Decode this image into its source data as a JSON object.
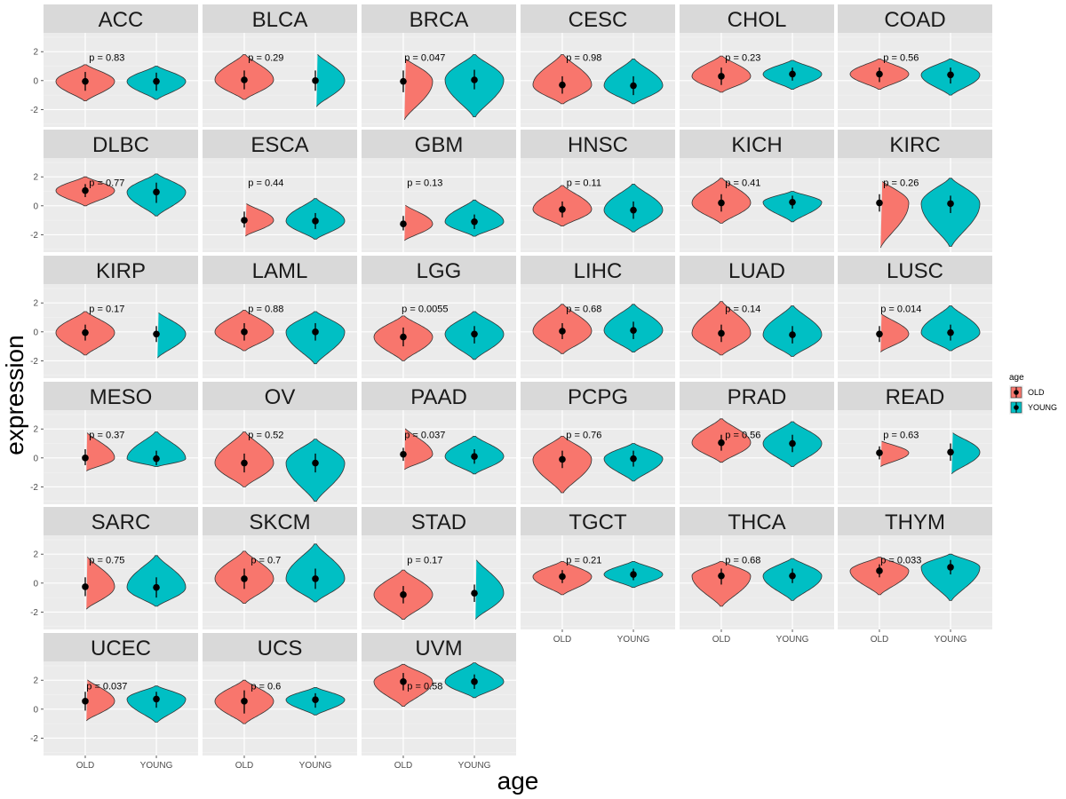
{
  "chart_data": {
    "type": "violin",
    "xlabel": "age",
    "ylabel": "expression",
    "categories": [
      "OLD",
      "YOUNG"
    ],
    "ylim": [
      -3.2,
      3.3
    ],
    "yticks": [
      -2,
      0,
      2
    ],
    "yticklabels": [
      "-2",
      "0",
      "2"
    ],
    "legend": {
      "title": "age",
      "position": "right",
      "entries": [
        {
          "label": "OLD",
          "color": "#F8766D"
        },
        {
          "label": "YOUNG",
          "color": "#00BFC4"
        }
      ]
    },
    "panels": [
      {
        "name": "ACC",
        "p": "p = 0.83",
        "old": {
          "median": -0.05,
          "lo": -0.7,
          "hi": 0.6,
          "min": -1.4,
          "max": 1.1
        },
        "young": {
          "median": -0.05,
          "lo": -0.7,
          "hi": 0.55,
          "min": -1.3,
          "max": 1.0
        }
      },
      {
        "name": "BLCA",
        "p": "p = 0.29",
        "old": {
          "median": 0.05,
          "lo": -0.6,
          "hi": 0.7,
          "min": -1.3,
          "max": 1.8
        },
        "young": {
          "median": 0.0,
          "lo": -0.7,
          "hi": 0.7,
          "min": -1.8,
          "max": 1.9
        }
      },
      {
        "name": "BRCA",
        "p": "p = 0.047",
        "old": {
          "median": -0.05,
          "lo": -0.8,
          "hi": 0.7,
          "min": -2.7,
          "max": 1.6
        },
        "young": {
          "median": 0.05,
          "lo": -0.6,
          "hi": 0.75,
          "min": -2.5,
          "max": 1.8
        }
      },
      {
        "name": "CESC",
        "p": "p = 0.98",
        "old": {
          "median": -0.3,
          "lo": -0.9,
          "hi": 0.3,
          "min": -1.6,
          "max": 1.8
        },
        "young": {
          "median": -0.35,
          "lo": -1.0,
          "hi": 0.3,
          "min": -1.6,
          "max": 1.5
        }
      },
      {
        "name": "CHOL",
        "p": "p = 0.23",
        "old": {
          "median": 0.3,
          "lo": -0.3,
          "hi": 0.9,
          "min": -0.8,
          "max": 1.7
        },
        "young": {
          "median": 0.45,
          "lo": 0.0,
          "hi": 0.9,
          "min": -0.6,
          "max": 1.4
        }
      },
      {
        "name": "COAD",
        "p": "p = 0.56",
        "old": {
          "median": 0.45,
          "lo": -0.1,
          "hi": 0.9,
          "min": -0.6,
          "max": 1.5
        },
        "young": {
          "median": 0.4,
          "lo": -0.2,
          "hi": 0.9,
          "min": -1.0,
          "max": 1.5
        }
      },
      {
        "name": "DLBC",
        "p": "p = 0.77",
        "old": {
          "median": 1.05,
          "lo": 0.6,
          "hi": 1.5,
          "min": 0.0,
          "max": 2.0
        },
        "young": {
          "median": 0.95,
          "lo": 0.2,
          "hi": 1.6,
          "min": -0.7,
          "max": 2.2
        }
      },
      {
        "name": "ESCA",
        "p": "p = 0.44",
        "old": {
          "median": -1.0,
          "lo": -1.5,
          "hi": -0.4,
          "min": -2.1,
          "max": 0.2
        },
        "young": {
          "median": -1.05,
          "lo": -1.6,
          "hi": -0.5,
          "min": -2.3,
          "max": 0.5
        }
      },
      {
        "name": "GBM",
        "p": "p = 0.13",
        "old": {
          "median": -1.25,
          "lo": -1.7,
          "hi": -0.7,
          "min": -2.4,
          "max": 0.1
        },
        "young": {
          "median": -1.1,
          "lo": -1.6,
          "hi": -0.6,
          "min": -2.1,
          "max": 0.4
        }
      },
      {
        "name": "HNSC",
        "p": "p = 0.11",
        "old": {
          "median": -0.25,
          "lo": -0.8,
          "hi": 0.3,
          "min": -1.4,
          "max": 1.4
        },
        "young": {
          "median": -0.3,
          "lo": -0.9,
          "hi": 0.3,
          "min": -1.8,
          "max": 1.5
        }
      },
      {
        "name": "KICH",
        "p": "p = 0.41",
        "old": {
          "median": 0.2,
          "lo": -0.4,
          "hi": 0.8,
          "min": -1.2,
          "max": 1.9
        },
        "young": {
          "median": 0.25,
          "lo": -0.2,
          "hi": 0.7,
          "min": -1.1,
          "max": 1.0
        }
      },
      {
        "name": "KIRC",
        "p": "p = 0.26",
        "old": {
          "median": 0.2,
          "lo": -0.4,
          "hi": 0.8,
          "min": -2.9,
          "max": 1.8
        },
        "young": {
          "median": 0.15,
          "lo": -0.5,
          "hi": 0.7,
          "min": -2.8,
          "max": 1.9
        }
      },
      {
        "name": "KIRP",
        "p": "p = 0.17",
        "old": {
          "median": -0.05,
          "lo": -0.6,
          "hi": 0.5,
          "min": -1.6,
          "max": 1.4
        },
        "young": {
          "median": -0.15,
          "lo": -0.7,
          "hi": 0.4,
          "min": -1.8,
          "max": 1.4
        }
      },
      {
        "name": "LAML",
        "p": "p = 0.88",
        "old": {
          "median": 0.0,
          "lo": -0.6,
          "hi": 0.6,
          "min": -1.3,
          "max": 1.5
        },
        "young": {
          "median": 0.0,
          "lo": -0.6,
          "hi": 0.6,
          "min": -2.2,
          "max": 1.4
        }
      },
      {
        "name": "LGG",
        "p": "p = 0.0055",
        "old": {
          "median": -0.35,
          "lo": -1.0,
          "hi": 0.3,
          "min": -2.0,
          "max": 1.1
        },
        "young": {
          "median": -0.15,
          "lo": -0.8,
          "hi": 0.4,
          "min": -1.9,
          "max": 1.4
        }
      },
      {
        "name": "LIHC",
        "p": "p = 0.68",
        "old": {
          "median": 0.05,
          "lo": -0.5,
          "hi": 0.6,
          "min": -1.5,
          "max": 1.9
        },
        "young": {
          "median": 0.1,
          "lo": -0.5,
          "hi": 0.7,
          "min": -1.4,
          "max": 1.9
        }
      },
      {
        "name": "LUAD",
        "p": "p = 0.14",
        "old": {
          "median": -0.1,
          "lo": -0.7,
          "hi": 0.5,
          "min": -1.6,
          "max": 2.1
        },
        "young": {
          "median": -0.2,
          "lo": -0.8,
          "hi": 0.4,
          "min": -1.7,
          "max": 1.8
        }
      },
      {
        "name": "LUSC",
        "p": "p = 0.014",
        "old": {
          "median": -0.15,
          "lo": -0.7,
          "hi": 0.4,
          "min": -1.4,
          "max": 1.3
        },
        "young": {
          "median": -0.05,
          "lo": -0.6,
          "hi": 0.5,
          "min": -1.3,
          "max": 1.8
        }
      },
      {
        "name": "MESO",
        "p": "p = 0.37",
        "old": {
          "median": 0.0,
          "lo": -0.5,
          "hi": 0.6,
          "min": -0.9,
          "max": 1.8
        },
        "young": {
          "median": -0.05,
          "lo": -0.5,
          "hi": 0.5,
          "min": -0.6,
          "max": 1.8
        }
      },
      {
        "name": "OV",
        "p": "p = 0.52",
        "old": {
          "median": -0.35,
          "lo": -1.0,
          "hi": 0.3,
          "min": -2.0,
          "max": 1.8
        },
        "young": {
          "median": -0.35,
          "lo": -1.0,
          "hi": 0.3,
          "min": -3.0,
          "max": 1.3
        }
      },
      {
        "name": "PAAD",
        "p": "p = 0.037",
        "old": {
          "median": 0.25,
          "lo": -0.2,
          "hi": 0.7,
          "min": -0.8,
          "max": 2.1
        },
        "young": {
          "median": 0.1,
          "lo": -0.4,
          "hi": 0.6,
          "min": -1.1,
          "max": 1.5
        }
      },
      {
        "name": "PCPG",
        "p": "p = 0.76",
        "old": {
          "median": -0.1,
          "lo": -0.7,
          "hi": 0.5,
          "min": -2.4,
          "max": 1.5
        },
        "young": {
          "median": -0.05,
          "lo": -0.6,
          "hi": 0.5,
          "min": -1.6,
          "max": 1.0
        }
      },
      {
        "name": "PRAD",
        "p": "p = 0.56",
        "old": {
          "median": 1.05,
          "lo": 0.5,
          "hi": 1.6,
          "min": -0.3,
          "max": 2.7
        },
        "young": {
          "median": 1.0,
          "lo": 0.4,
          "hi": 1.6,
          "min": -0.6,
          "max": 2.5
        }
      },
      {
        "name": "READ",
        "p": "p = 0.63",
        "old": {
          "median": 0.35,
          "lo": -0.1,
          "hi": 0.8,
          "min": -0.6,
          "max": 1.2
        },
        "young": {
          "median": 0.4,
          "lo": -0.2,
          "hi": 1.0,
          "min": -1.1,
          "max": 1.8
        }
      },
      {
        "name": "SARC",
        "p": "p = 0.75",
        "old": {
          "median": -0.25,
          "lo": -0.9,
          "hi": 0.4,
          "min": -1.8,
          "max": 1.9
        },
        "young": {
          "median": -0.3,
          "lo": -1.0,
          "hi": 0.4,
          "min": -1.6,
          "max": 1.9
        }
      },
      {
        "name": "SKCM",
        "p": "p = 0.7",
        "old": {
          "median": 0.3,
          "lo": -0.4,
          "hi": 1.0,
          "min": -1.4,
          "max": 2.2
        },
        "young": {
          "median": 0.3,
          "lo": -0.4,
          "hi": 1.0,
          "min": -1.3,
          "max": 2.7
        }
      },
      {
        "name": "STAD",
        "p": "p = 0.17",
        "old": {
          "median": -0.8,
          "lo": -1.4,
          "hi": -0.2,
          "min": -2.5,
          "max": 0.9
        },
        "young": {
          "median": -0.7,
          "lo": -1.3,
          "hi": -0.1,
          "min": -2.5,
          "max": 1.7
        }
      },
      {
        "name": "TGCT",
        "p": "p = 0.21",
        "old": {
          "median": 0.45,
          "lo": 0.0,
          "hi": 0.9,
          "min": -0.8,
          "max": 1.5
        },
        "young": {
          "median": 0.6,
          "lo": 0.2,
          "hi": 1.0,
          "min": -0.3,
          "max": 1.5
        }
      },
      {
        "name": "THCA",
        "p": "p = 0.68",
        "old": {
          "median": 0.5,
          "lo": -0.1,
          "hi": 1.0,
          "min": -1.6,
          "max": 1.5
        },
        "young": {
          "median": 0.5,
          "lo": 0.0,
          "hi": 1.0,
          "min": -1.2,
          "max": 1.7
        }
      },
      {
        "name": "THYM",
        "p": "p = 0.033",
        "old": {
          "median": 0.85,
          "lo": 0.4,
          "hi": 1.3,
          "min": -0.8,
          "max": 1.8
        },
        "young": {
          "median": 1.1,
          "lo": 0.6,
          "hi": 1.6,
          "min": -1.2,
          "max": 2.0
        }
      },
      {
        "name": "UCEC",
        "p": "p = 0.037",
        "old": {
          "median": 0.55,
          "lo": -0.1,
          "hi": 1.2,
          "min": -0.8,
          "max": 2.1
        },
        "young": {
          "median": 0.7,
          "lo": 0.1,
          "hi": 1.2,
          "min": -0.9,
          "max": 1.6
        }
      },
      {
        "name": "UCS",
        "p": "p = 0.6",
        "old": {
          "median": 0.55,
          "lo": -0.3,
          "hi": 1.3,
          "min": -1.0,
          "max": 2.0
        },
        "young": {
          "median": 0.65,
          "lo": 0.1,
          "hi": 1.1,
          "min": -0.4,
          "max": 1.5
        }
      },
      {
        "name": "UVM",
        "p": "p = 0.58",
        "old": {
          "median": 1.9,
          "lo": 1.3,
          "hi": 2.5,
          "min": 0.2,
          "max": 3.1
        },
        "young": {
          "median": 1.9,
          "lo": 1.4,
          "hi": 2.4,
          "min": 0.8,
          "max": 3.2
        }
      }
    ]
  }
}
